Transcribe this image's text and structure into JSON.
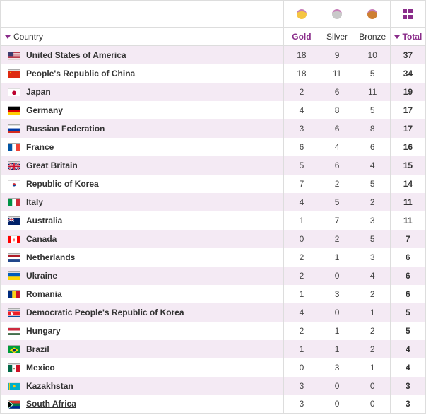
{
  "headers": {
    "country": "Country",
    "gold": "Gold",
    "silver": "Silver",
    "bronze": "Bronze",
    "total": "Total"
  },
  "medal_icon_colors": {
    "gold": {
      "fill": "#f5c542",
      "ribbon": "#c77db8"
    },
    "silver": {
      "fill": "#c9c9c9",
      "ribbon": "#c77db8"
    },
    "bronze": {
      "fill": "#cd7f32",
      "ribbon": "#c77db8"
    }
  },
  "colors": {
    "row_odd": "#f4eaf4",
    "row_even": "#ffffff",
    "border": "#dddddd",
    "accent": "#8a2d8a",
    "text": "#333333"
  },
  "sorted_by": "total",
  "rows": [
    {
      "country": "United States of America",
      "code": "USA",
      "gold": 18,
      "silver": 9,
      "bronze": 10,
      "total": 37,
      "link": false
    },
    {
      "country": "People's Republic of China",
      "code": "CHN",
      "gold": 18,
      "silver": 11,
      "bronze": 5,
      "total": 34,
      "link": false
    },
    {
      "country": "Japan",
      "code": "JPN",
      "gold": 2,
      "silver": 6,
      "bronze": 11,
      "total": 19,
      "link": false
    },
    {
      "country": "Germany",
      "code": "GER",
      "gold": 4,
      "silver": 8,
      "bronze": 5,
      "total": 17,
      "link": false
    },
    {
      "country": "Russian Federation",
      "code": "RUS",
      "gold": 3,
      "silver": 6,
      "bronze": 8,
      "total": 17,
      "link": false
    },
    {
      "country": "France",
      "code": "FRA",
      "gold": 6,
      "silver": 4,
      "bronze": 6,
      "total": 16,
      "link": false
    },
    {
      "country": "Great Britain",
      "code": "GBR",
      "gold": 5,
      "silver": 6,
      "bronze": 4,
      "total": 15,
      "link": false
    },
    {
      "country": "Republic of Korea",
      "code": "KOR",
      "gold": 7,
      "silver": 2,
      "bronze": 5,
      "total": 14,
      "link": false
    },
    {
      "country": "Italy",
      "code": "ITA",
      "gold": 4,
      "silver": 5,
      "bronze": 2,
      "total": 11,
      "link": false
    },
    {
      "country": "Australia",
      "code": "AUS",
      "gold": 1,
      "silver": 7,
      "bronze": 3,
      "total": 11,
      "link": false
    },
    {
      "country": "Canada",
      "code": "CAN",
      "gold": 0,
      "silver": 2,
      "bronze": 5,
      "total": 7,
      "link": false
    },
    {
      "country": "Netherlands",
      "code": "NED",
      "gold": 2,
      "silver": 1,
      "bronze": 3,
      "total": 6,
      "link": false
    },
    {
      "country": "Ukraine",
      "code": "UKR",
      "gold": 2,
      "silver": 0,
      "bronze": 4,
      "total": 6,
      "link": false
    },
    {
      "country": "Romania",
      "code": "ROU",
      "gold": 1,
      "silver": 3,
      "bronze": 2,
      "total": 6,
      "link": false
    },
    {
      "country": "Democratic People's Republic of Korea",
      "code": "PRK",
      "gold": 4,
      "silver": 0,
      "bronze": 1,
      "total": 5,
      "link": false
    },
    {
      "country": "Hungary",
      "code": "HUN",
      "gold": 2,
      "silver": 1,
      "bronze": 2,
      "total": 5,
      "link": false
    },
    {
      "country": "Brazil",
      "code": "BRA",
      "gold": 1,
      "silver": 1,
      "bronze": 2,
      "total": 4,
      "link": false
    },
    {
      "country": "Mexico",
      "code": "MEX",
      "gold": 0,
      "silver": 3,
      "bronze": 1,
      "total": 4,
      "link": false
    },
    {
      "country": "Kazakhstan",
      "code": "KAZ",
      "gold": 3,
      "silver": 0,
      "bronze": 0,
      "total": 3,
      "link": false
    },
    {
      "country": "South Africa",
      "code": "RSA",
      "gold": 3,
      "silver": 0,
      "bronze": 0,
      "total": 3,
      "link": true
    }
  ],
  "flags": {
    "USA": "<svg viewBox='0 0 18 12'><rect width='18' height='12' fill='#b22234'/><rect y='1' width='18' height='1' fill='#fff'/><rect y='3' width='18' height='1' fill='#fff'/><rect y='5' width='18' height='1' fill='#fff'/><rect y='7' width='18' height='1' fill='#fff'/><rect y='9' width='18' height='1' fill='#fff'/><rect y='11' width='18' height='1' fill='#fff'/><rect width='8' height='6' fill='#3c3b6e'/></svg>",
    "CHN": "<svg viewBox='0 0 18 12'><rect width='18' height='12' fill='#de2910'/><polygon points='3,2 3.6,3.6 2,2.6 4,2.6 2.4,3.6' fill='#ffde00'/></svg>",
    "JPN": "<svg viewBox='0 0 18 12'><rect width='18' height='12' fill='#fff'/><circle cx='9' cy='6' r='3.2' fill='#bc002d'/></svg>",
    "GER": "<svg viewBox='0 0 18 12'><rect width='18' height='4' fill='#000'/><rect y='4' width='18' height='4' fill='#dd0000'/><rect y='8' width='18' height='4' fill='#ffce00'/></svg>",
    "RUS": "<svg viewBox='0 0 18 12'><rect width='18' height='4' fill='#fff'/><rect y='4' width='18' height='4' fill='#0039a6'/><rect y='8' width='18' height='4' fill='#d52b1e'/></svg>",
    "FRA": "<svg viewBox='0 0 18 12'><rect width='6' height='12' fill='#0055a4'/><rect x='6' width='6' height='12' fill='#fff'/><rect x='12' width='6' height='12' fill='#ef4135'/></svg>",
    "GBR": "<svg viewBox='0 0 18 12'><rect width='18' height='12' fill='#012169'/><path d='M0,0 L18,12 M18,0 L0,12' stroke='#fff' stroke-width='2.5'/><path d='M0,0 L18,12 M18,0 L0,12' stroke='#c8102e' stroke-width='1'/><rect x='7.5' width='3' height='12' fill='#fff'/><rect y='4.5' width='18' height='3' fill='#fff'/><rect x='8' width='2' height='12' fill='#c8102e'/><rect y='5' width='18' height='2' fill='#c8102e'/></svg>",
    "KOR": "<svg viewBox='0 0 18 12'><rect width='18' height='12' fill='#fff'/><circle cx='9' cy='6' r='2.5' fill='#cd2e3a'/><path d='M6.5,6 A2.5,2.5 0 0 0 11.5,6' fill='#0047a0'/></svg>",
    "ITA": "<svg viewBox='0 0 18 12'><rect width='6' height='12' fill='#009246'/><rect x='6' width='6' height='12' fill='#fff'/><rect x='12' width='6' height='12' fill='#ce2b37'/></svg>",
    "AUS": "<svg viewBox='0 0 18 12'><rect width='18' height='12' fill='#012169'/><rect width='9' height='6' fill='#012169'/><path d='M0,0 L9,6 M9,0 L0,6' stroke='#fff' stroke-width='1.2'/><rect x='3.8' width='1.4' height='6' fill='#fff'/><rect y='2.3' width='9' height='1.4' fill='#fff'/><rect x='4.1' width='0.8' height='6' fill='#c8102e'/><rect y='2.6' width='9' height='0.8' fill='#c8102e'/></svg>",
    "CAN": "<svg viewBox='0 0 18 12'><rect width='18' height='12' fill='#fff'/><rect width='4.5' height='12' fill='#ff0000'/><rect x='13.5' width='4.5' height='12' fill='#ff0000'/><polygon points='9,3 10,6 9,9 8,6' fill='#ff0000'/></svg>",
    "NED": "<svg viewBox='0 0 18 12'><rect width='18' height='4' fill='#ae1c28'/><rect y='4' width='18' height='4' fill='#fff'/><rect y='8' width='18' height='4' fill='#21468b'/></svg>",
    "UKR": "<svg viewBox='0 0 18 12'><rect width='18' height='6' fill='#005bbb'/><rect y='6' width='18' height='6' fill='#ffd500'/></svg>",
    "ROU": "<svg viewBox='0 0 18 12'><rect width='6' height='12' fill='#002b7f'/><rect x='6' width='6' height='12' fill='#fcd116'/><rect x='12' width='6' height='12' fill='#ce1126'/></svg>",
    "PRK": "<svg viewBox='0 0 18 12'><rect width='18' height='12' fill='#024fa2'/><rect y='2' width='18' height='8' fill='#fff'/><rect y='2.7' width='18' height='6.6' fill='#ed1c27'/><circle cx='6' cy='6' r='2' fill='#fff'/><polygon points='6,4.5 6.5,5.8 5.2,5 6.8,5 5.5,5.8' fill='#ed1c27'/></svg>",
    "HUN": "<svg viewBox='0 0 18 12'><rect width='18' height='4' fill='#cd2a3e'/><rect y='4' width='18' height='4' fill='#fff'/><rect y='8' width='18' height='4' fill='#436f4d'/></svg>",
    "BRA": "<svg viewBox='0 0 18 12'><rect width='18' height='12' fill='#009c3b'/><polygon points='9,1.5 16,6 9,10.5 2,6' fill='#ffdf00'/><circle cx='9' cy='6' r='2.5' fill='#002776'/></svg>",
    "MEX": "<svg viewBox='0 0 18 12'><rect width='6' height='12' fill='#006847'/><rect x='6' width='6' height='12' fill='#fff'/><rect x='12' width='6' height='12' fill='#ce1126'/><circle cx='9' cy='6' r='1.2' fill='#a67c52'/></svg>",
    "KAZ": "<svg viewBox='0 0 18 12'><rect width='18' height='12' fill='#00afca'/><circle cx='9' cy='5' r='2' fill='#fec50c'/><rect x='1' width='1.2' height='12' fill='#fec50c'/></svg>",
    "RSA": "<svg viewBox='0 0 18 12'><rect width='18' height='12' fill='#007a4d'/><polygon points='0,0 18,0 18,4 7,4 0,0' fill='#de3831'/><polygon points='0,12 18,12 18,8 7,8 0,12' fill='#002395'/><polygon points='0,1.5 5,6 0,10.5' fill='#000'/><path d='M0,0 L7,6 L0,12' fill='none' stroke='#fff' stroke-width='1'/></svg>"
  }
}
